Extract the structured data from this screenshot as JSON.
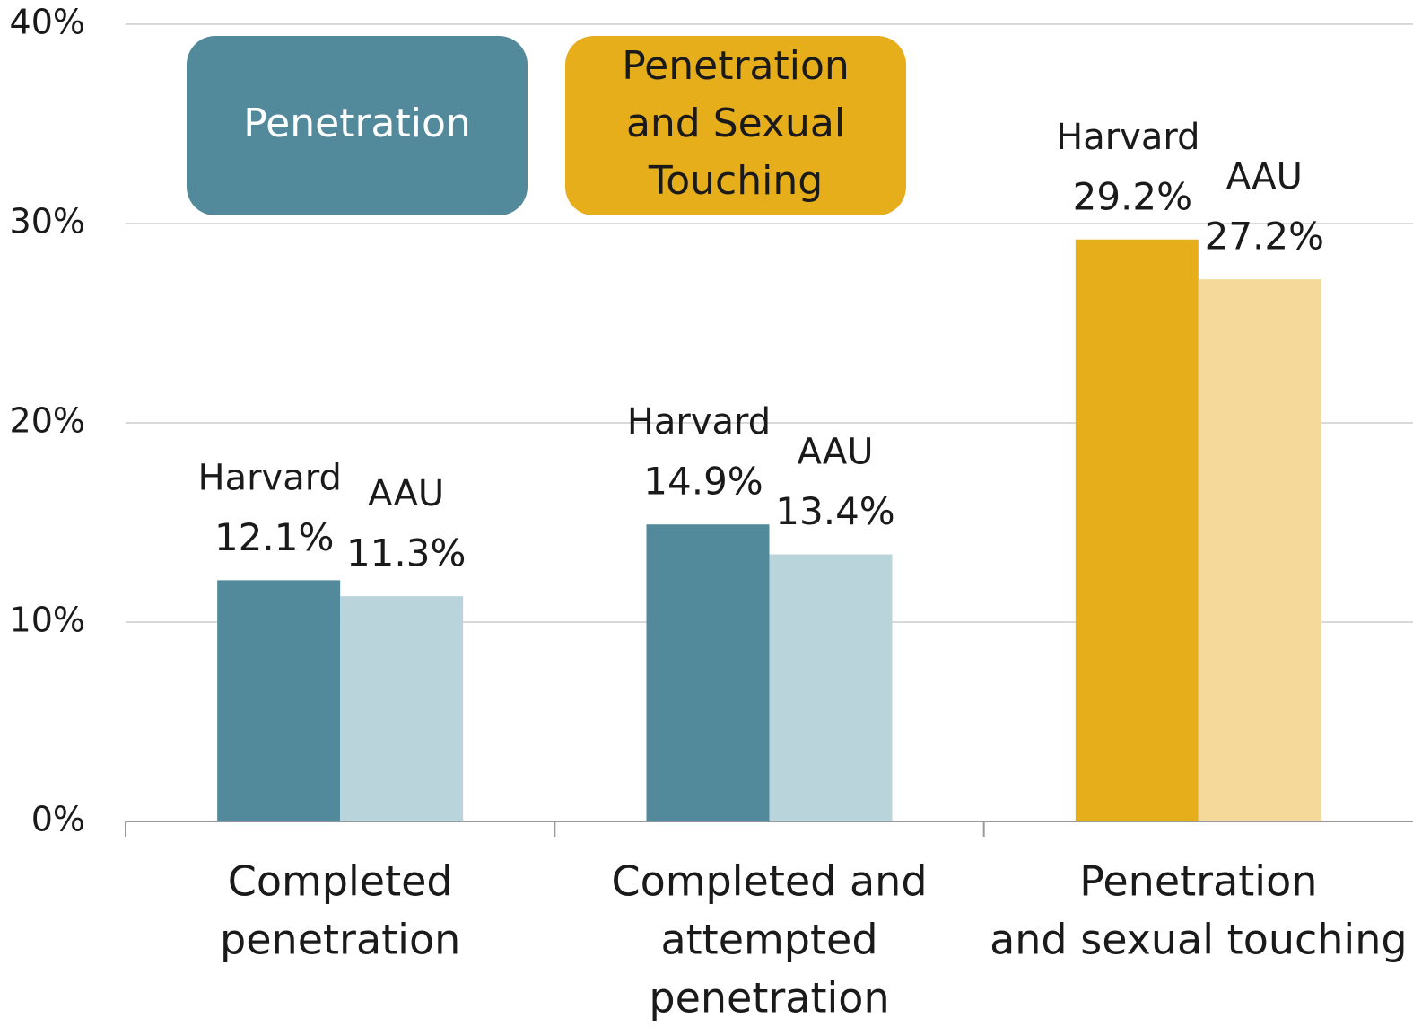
{
  "chart_data": {
    "type": "bar",
    "categories": [
      [
        "Completed",
        "penetration"
      ],
      [
        "Completed and",
        "attempted",
        "penetration"
      ],
      [
        "Penetration",
        "and sexual touching"
      ]
    ],
    "series": [
      {
        "name": "Harvard",
        "colors": [
          "#528a9b",
          "#528a9b",
          "#e6ae1b"
        ],
        "values": [
          12.1,
          14.9,
          29.2
        ],
        "value_labels": [
          "12.1%",
          "14.9%",
          "29.2%"
        ]
      },
      {
        "name": "AAU",
        "colors": [
          "#b9d4db",
          "#b9d4db",
          "#f5d99a"
        ],
        "values": [
          11.3,
          13.4,
          27.2
        ],
        "value_labels": [
          "11.3%",
          "13.4%",
          "27.2%"
        ]
      }
    ],
    "legend": [
      {
        "lines": [
          "Penetration"
        ],
        "color": "#528a9b",
        "text_color": "#ffffff"
      },
      {
        "lines": [
          "Penetration",
          "and Sexual",
          "Touching"
        ],
        "color": "#e6ae1b",
        "text_color": "#1a1a1a"
      }
    ],
    "ylim": [
      0,
      40
    ],
    "yticks": [
      {
        "value": 0,
        "label": "0%"
      },
      {
        "value": 10,
        "label": "10%"
      },
      {
        "value": 20,
        "label": "20%"
      },
      {
        "value": 30,
        "label": "30%"
      },
      {
        "value": 40,
        "label": "40%"
      }
    ],
    "grid": true
  }
}
